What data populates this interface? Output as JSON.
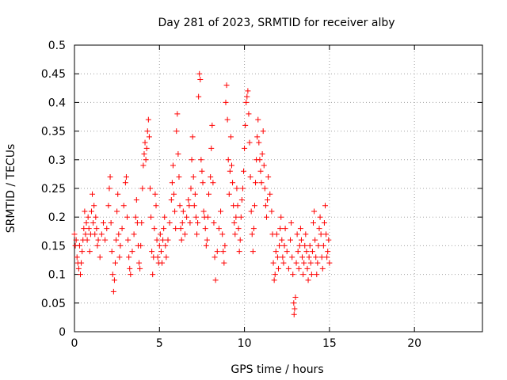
{
  "chart_data": {
    "type": "scatter",
    "title": "Day 281 of 2023, SRMTID for receiver alby",
    "xlabel": "GPS time / hours",
    "ylabel": "SRMTID / TECUs",
    "xlim": [
      0,
      24
    ],
    "ylim": [
      0,
      0.5
    ],
    "x_ticks": [
      0,
      5,
      10,
      15,
      20
    ],
    "y_ticks": [
      0,
      0.05,
      0.1,
      0.15,
      0.2,
      0.25,
      0.3,
      0.35,
      0.4,
      0.45,
      0.5
    ],
    "grid": true,
    "marker": "plus",
    "colors": {
      "series": "#ff0000",
      "grid": "#a0a0a0",
      "axis": "#000000"
    },
    "series": [
      {
        "points": [
          [
            0.0,
            0.17
          ],
          [
            0.05,
            0.15
          ],
          [
            0.1,
            0.16
          ],
          [
            0.15,
            0.13
          ],
          [
            0.2,
            0.12
          ],
          [
            0.25,
            0.11
          ],
          [
            0.3,
            0.15
          ],
          [
            0.35,
            0.1
          ],
          [
            0.4,
            0.12
          ],
          [
            0.45,
            0.14
          ],
          [
            0.5,
            0.16
          ],
          [
            0.55,
            0.18
          ],
          [
            0.6,
            0.21
          ],
          [
            0.65,
            0.17
          ],
          [
            0.7,
            0.19
          ],
          [
            0.75,
            0.16
          ],
          [
            0.8,
            0.2
          ],
          [
            0.85,
            0.18
          ],
          [
            0.9,
            0.14
          ],
          [
            0.95,
            0.17
          ],
          [
            1.0,
            0.21
          ],
          [
            1.05,
            0.24
          ],
          [
            1.1,
            0.19
          ],
          [
            1.15,
            0.22
          ],
          [
            1.2,
            0.17
          ],
          [
            1.25,
            0.2
          ],
          [
            1.3,
            0.18
          ],
          [
            1.35,
            0.15
          ],
          [
            1.4,
            0.16
          ],
          [
            1.5,
            0.13
          ],
          [
            1.6,
            0.17
          ],
          [
            1.7,
            0.19
          ],
          [
            1.8,
            0.16
          ],
          [
            1.9,
            0.18
          ],
          [
            2.0,
            0.22
          ],
          [
            2.05,
            0.25
          ],
          [
            2.1,
            0.27
          ],
          [
            2.15,
            0.19
          ],
          [
            2.2,
            0.14
          ],
          [
            2.25,
            0.1
          ],
          [
            2.3,
            0.07
          ],
          [
            2.35,
            0.09
          ],
          [
            2.4,
            0.12
          ],
          [
            2.45,
            0.16
          ],
          [
            2.5,
            0.21
          ],
          [
            2.55,
            0.24
          ],
          [
            2.6,
            0.17
          ],
          [
            2.65,
            0.13
          ],
          [
            2.7,
            0.15
          ],
          [
            2.8,
            0.18
          ],
          [
            2.9,
            0.22
          ],
          [
            3.0,
            0.26
          ],
          [
            3.05,
            0.27
          ],
          [
            3.1,
            0.2
          ],
          [
            3.15,
            0.16
          ],
          [
            3.2,
            0.13
          ],
          [
            3.25,
            0.11
          ],
          [
            3.3,
            0.1
          ],
          [
            3.4,
            0.14
          ],
          [
            3.5,
            0.17
          ],
          [
            3.6,
            0.2
          ],
          [
            3.65,
            0.23
          ],
          [
            3.7,
            0.19
          ],
          [
            3.75,
            0.15
          ],
          [
            3.8,
            0.12
          ],
          [
            3.85,
            0.11
          ],
          [
            3.9,
            0.15
          ],
          [
            3.95,
            0.19
          ],
          [
            4.0,
            0.25
          ],
          [
            4.05,
            0.29
          ],
          [
            4.1,
            0.31
          ],
          [
            4.15,
            0.33
          ],
          [
            4.2,
            0.3
          ],
          [
            4.25,
            0.32
          ],
          [
            4.3,
            0.35
          ],
          [
            4.35,
            0.37
          ],
          [
            4.4,
            0.34
          ],
          [
            4.45,
            0.25
          ],
          [
            4.5,
            0.2
          ],
          [
            4.55,
            0.14
          ],
          [
            4.6,
            0.1
          ],
          [
            4.65,
            0.13
          ],
          [
            4.7,
            0.18
          ],
          [
            4.75,
            0.24
          ],
          [
            4.8,
            0.22
          ],
          [
            4.85,
            0.16
          ],
          [
            4.9,
            0.13
          ],
          [
            4.95,
            0.12
          ],
          [
            5.0,
            0.15
          ],
          [
            5.05,
            0.17
          ],
          [
            5.1,
            0.14
          ],
          [
            5.15,
            0.12
          ],
          [
            5.2,
            0.16
          ],
          [
            5.25,
            0.18
          ],
          [
            5.3,
            0.2
          ],
          [
            5.35,
            0.15
          ],
          [
            5.4,
            0.13
          ],
          [
            5.5,
            0.16
          ],
          [
            5.6,
            0.19
          ],
          [
            5.7,
            0.23
          ],
          [
            5.75,
            0.26
          ],
          [
            5.8,
            0.29
          ],
          [
            5.85,
            0.24
          ],
          [
            5.9,
            0.21
          ],
          [
            5.95,
            0.18
          ],
          [
            6.0,
            0.35
          ],
          [
            6.05,
            0.38
          ],
          [
            6.1,
            0.31
          ],
          [
            6.15,
            0.27
          ],
          [
            6.2,
            0.22
          ],
          [
            6.25,
            0.18
          ],
          [
            6.3,
            0.16
          ],
          [
            6.35,
            0.19
          ],
          [
            6.4,
            0.21
          ],
          [
            6.5,
            0.17
          ],
          [
            6.6,
            0.2
          ],
          [
            6.7,
            0.23
          ],
          [
            6.75,
            0.22
          ],
          [
            6.8,
            0.19
          ],
          [
            6.85,
            0.25
          ],
          [
            6.9,
            0.3
          ],
          [
            6.95,
            0.34
          ],
          [
            7.0,
            0.27
          ],
          [
            7.05,
            0.22
          ],
          [
            7.1,
            0.24
          ],
          [
            7.15,
            0.2
          ],
          [
            7.2,
            0.17
          ],
          [
            7.25,
            0.19
          ],
          [
            7.3,
            0.41
          ],
          [
            7.35,
            0.45
          ],
          [
            7.4,
            0.44
          ],
          [
            7.45,
            0.3
          ],
          [
            7.5,
            0.28
          ],
          [
            7.55,
            0.26
          ],
          [
            7.6,
            0.21
          ],
          [
            7.65,
            0.2
          ],
          [
            7.7,
            0.18
          ],
          [
            7.75,
            0.15
          ],
          [
            7.8,
            0.16
          ],
          [
            7.85,
            0.2
          ],
          [
            7.9,
            0.24
          ],
          [
            8.0,
            0.27
          ],
          [
            8.05,
            0.32
          ],
          [
            8.1,
            0.36
          ],
          [
            8.15,
            0.26
          ],
          [
            8.2,
            0.19
          ],
          [
            8.25,
            0.13
          ],
          [
            8.3,
            0.09
          ],
          [
            8.4,
            0.14
          ],
          [
            8.5,
            0.18
          ],
          [
            8.6,
            0.21
          ],
          [
            8.7,
            0.17
          ],
          [
            8.75,
            0.14
          ],
          [
            8.8,
            0.12
          ],
          [
            8.85,
            0.15
          ],
          [
            8.9,
            0.4
          ],
          [
            8.95,
            0.43
          ],
          [
            9.0,
            0.37
          ],
          [
            9.05,
            0.3
          ],
          [
            9.1,
            0.24
          ],
          [
            9.15,
            0.28
          ],
          [
            9.2,
            0.34
          ],
          [
            9.25,
            0.29
          ],
          [
            9.3,
            0.26
          ],
          [
            9.35,
            0.22
          ],
          [
            9.4,
            0.19
          ],
          [
            9.45,
            0.17
          ],
          [
            9.5,
            0.2
          ],
          [
            9.55,
            0.25
          ],
          [
            9.6,
            0.22
          ],
          [
            9.65,
            0.18
          ],
          [
            9.7,
            0.14
          ],
          [
            9.75,
            0.16
          ],
          [
            9.8,
            0.2
          ],
          [
            9.85,
            0.23
          ],
          [
            9.9,
            0.25
          ],
          [
            9.95,
            0.28
          ],
          [
            10.0,
            0.32
          ],
          [
            10.05,
            0.36
          ],
          [
            10.1,
            0.4
          ],
          [
            10.15,
            0.41
          ],
          [
            10.2,
            0.42
          ],
          [
            10.25,
            0.38
          ],
          [
            10.3,
            0.33
          ],
          [
            10.35,
            0.27
          ],
          [
            10.4,
            0.21
          ],
          [
            10.45,
            0.17
          ],
          [
            10.5,
            0.14
          ],
          [
            10.55,
            0.18
          ],
          [
            10.6,
            0.22
          ],
          [
            10.65,
            0.26
          ],
          [
            10.7,
            0.3
          ],
          [
            10.75,
            0.34
          ],
          [
            10.8,
            0.37
          ],
          [
            10.85,
            0.33
          ],
          [
            10.9,
            0.3
          ],
          [
            10.95,
            0.28
          ],
          [
            11.0,
            0.26
          ],
          [
            11.05,
            0.31
          ],
          [
            11.1,
            0.35
          ],
          [
            11.15,
            0.29
          ],
          [
            11.2,
            0.25
          ],
          [
            11.25,
            0.22
          ],
          [
            11.3,
            0.2
          ],
          [
            11.35,
            0.23
          ],
          [
            11.4,
            0.27
          ],
          [
            11.5,
            0.24
          ],
          [
            11.6,
            0.21
          ],
          [
            11.65,
            0.17
          ],
          [
            11.7,
            0.12
          ],
          [
            11.75,
            0.09
          ],
          [
            11.8,
            0.1
          ],
          [
            11.85,
            0.14
          ],
          [
            11.9,
            0.17
          ],
          [
            11.95,
            0.13
          ],
          [
            12.0,
            0.11
          ],
          [
            12.05,
            0.15
          ],
          [
            12.1,
            0.18
          ],
          [
            12.15,
            0.2
          ],
          [
            12.2,
            0.16
          ],
          [
            12.25,
            0.13
          ],
          [
            12.3,
            0.12
          ],
          [
            12.35,
            0.15
          ],
          [
            12.4,
            0.18
          ],
          [
            12.5,
            0.14
          ],
          [
            12.6,
            0.11
          ],
          [
            12.7,
            0.16
          ],
          [
            12.75,
            0.19
          ],
          [
            12.8,
            0.13
          ],
          [
            12.85,
            0.1
          ],
          [
            12.9,
            0.05
          ],
          [
            12.92,
            0.03
          ],
          [
            12.95,
            0.04
          ],
          [
            13.0,
            0.06
          ],
          [
            13.05,
            0.12
          ],
          [
            13.1,
            0.17
          ],
          [
            13.15,
            0.14
          ],
          [
            13.2,
            0.11
          ],
          [
            13.25,
            0.15
          ],
          [
            13.3,
            0.18
          ],
          [
            13.35,
            0.16
          ],
          [
            13.4,
            0.13
          ],
          [
            13.45,
            0.1
          ],
          [
            13.5,
            0.12
          ],
          [
            13.55,
            0.15
          ],
          [
            13.6,
            0.17
          ],
          [
            13.65,
            0.14
          ],
          [
            13.7,
            0.11
          ],
          [
            13.75,
            0.09
          ],
          [
            13.8,
            0.13
          ],
          [
            13.85,
            0.15
          ],
          [
            13.9,
            0.12
          ],
          [
            13.95,
            0.1
          ],
          [
            14.0,
            0.14
          ],
          [
            14.05,
            0.19
          ],
          [
            14.1,
            0.21
          ],
          [
            14.15,
            0.16
          ],
          [
            14.2,
            0.13
          ],
          [
            14.25,
            0.1
          ],
          [
            14.3,
            0.12
          ],
          [
            14.35,
            0.15
          ],
          [
            14.4,
            0.18
          ],
          [
            14.45,
            0.2
          ],
          [
            14.5,
            0.17
          ],
          [
            14.55,
            0.13
          ],
          [
            14.6,
            0.11
          ],
          [
            14.65,
            0.15
          ],
          [
            14.7,
            0.19
          ],
          [
            14.75,
            0.22
          ],
          [
            14.8,
            0.17
          ],
          [
            14.85,
            0.13
          ],
          [
            14.9,
            0.14
          ],
          [
            14.95,
            0.16
          ],
          [
            15.0,
            0.12
          ]
        ]
      }
    ]
  }
}
